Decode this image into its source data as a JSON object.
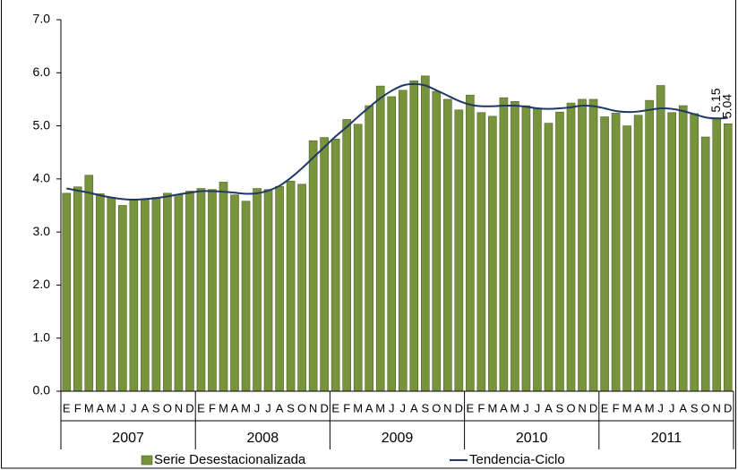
{
  "chart_data": {
    "type": "bar",
    "categories": [
      "E",
      "F",
      "M",
      "A",
      "M",
      "J",
      "J",
      "A",
      "S",
      "O",
      "N",
      "D",
      "E",
      "F",
      "M",
      "A",
      "M",
      "J",
      "J",
      "A",
      "S",
      "O",
      "N",
      "D",
      "E",
      "F",
      "M",
      "A",
      "M",
      "J",
      "J",
      "A",
      "S",
      "O",
      "N",
      "D",
      "E",
      "F",
      "M",
      "A",
      "M",
      "J",
      "J",
      "A",
      "S",
      "O",
      "N",
      "D",
      "E",
      "F",
      "M",
      "A",
      "M",
      "J",
      "J",
      "A",
      "S",
      "O",
      "N",
      "D"
    ],
    "years": [
      "2007",
      "2008",
      "2009",
      "2010",
      "2011"
    ],
    "series": [
      {
        "name": "Serie Desestacionalizada",
        "type": "bar",
        "color": "#77933c",
        "edge": "#4f6228",
        "values": [
          3.73,
          3.85,
          4.07,
          3.72,
          3.65,
          3.5,
          3.6,
          3.62,
          3.65,
          3.73,
          3.7,
          3.77,
          3.82,
          3.8,
          3.94,
          3.7,
          3.58,
          3.82,
          3.8,
          3.86,
          3.96,
          3.9,
          4.72,
          4.78,
          4.75,
          5.12,
          5.03,
          5.38,
          5.75,
          5.55,
          5.67,
          5.85,
          5.94,
          5.65,
          5.5,
          5.3,
          5.58,
          5.25,
          5.18,
          5.53,
          5.46,
          5.38,
          5.33,
          5.05,
          5.26,
          5.43,
          5.5,
          5.5,
          5.17,
          5.24,
          5.0,
          5.2,
          5.48,
          5.76,
          5.25,
          5.38,
          5.23,
          4.79,
          5.15,
          5.04
        ],
        "value_labels": [
          null,
          null,
          null,
          null,
          null,
          null,
          null,
          null,
          null,
          null,
          null,
          null,
          null,
          null,
          null,
          null,
          null,
          null,
          null,
          null,
          null,
          null,
          null,
          null,
          null,
          null,
          null,
          null,
          null,
          null,
          null,
          null,
          null,
          null,
          null,
          null,
          null,
          null,
          null,
          null,
          null,
          null,
          null,
          null,
          null,
          null,
          null,
          null,
          null,
          null,
          null,
          null,
          null,
          null,
          null,
          null,
          null,
          null,
          "5.15",
          "5.04"
        ]
      },
      {
        "name": "Tendencia-Ciclo",
        "type": "line",
        "color": "#1f3864",
        "values": [
          3.82,
          3.78,
          3.74,
          3.69,
          3.65,
          3.62,
          3.61,
          3.62,
          3.64,
          3.67,
          3.71,
          3.74,
          3.77,
          3.77,
          3.76,
          3.74,
          3.72,
          3.73,
          3.78,
          3.87,
          4.02,
          4.2,
          4.4,
          4.6,
          4.8,
          4.98,
          5.17,
          5.35,
          5.52,
          5.66,
          5.76,
          5.79,
          5.76,
          5.67,
          5.57,
          5.47,
          5.4,
          5.37,
          5.37,
          5.38,
          5.38,
          5.36,
          5.33,
          5.32,
          5.33,
          5.35,
          5.38,
          5.37,
          5.33,
          5.28,
          5.26,
          5.27,
          5.3,
          5.33,
          5.32,
          5.28,
          5.22,
          5.16,
          5.14,
          5.15
        ]
      }
    ],
    "ylim": [
      0,
      7
    ],
    "yticks": [
      {
        "value": 0,
        "label": "0.0"
      },
      {
        "value": 1,
        "label": "1.0"
      },
      {
        "value": 2,
        "label": "2.0"
      },
      {
        "value": 3,
        "label": "3.0"
      },
      {
        "value": 4,
        "label": "4.0"
      },
      {
        "value": 5,
        "label": "5.0"
      },
      {
        "value": 6,
        "label": "6.0"
      },
      {
        "value": 7,
        "label": "7.0"
      }
    ],
    "grid": false,
    "legend": "bottom"
  }
}
